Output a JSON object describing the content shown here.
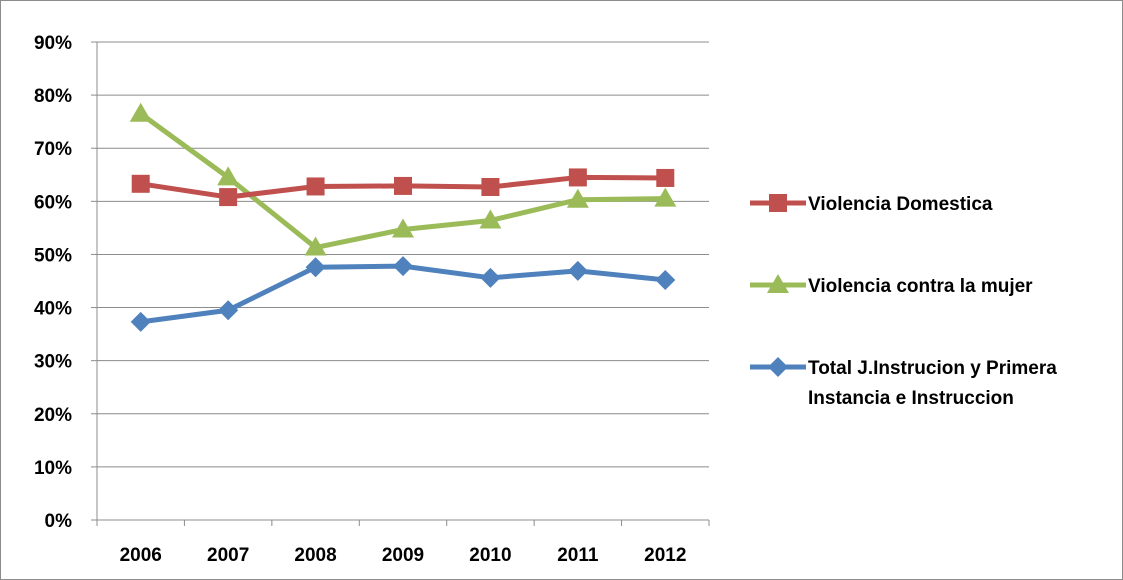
{
  "chart_data": {
    "type": "line",
    "categories": [
      "2006",
      "2007",
      "2008",
      "2009",
      "2010",
      "2011",
      "2012"
    ],
    "ylim": [
      0,
      0.9
    ],
    "yticks": [
      "0%",
      "10%",
      "20%",
      "30%",
      "40%",
      "50%",
      "60%",
      "70%",
      "80%",
      "90%"
    ],
    "grid": "horizontal",
    "legend_position": "right",
    "series": [
      {
        "name": "Violencia Domestica",
        "marker": "square",
        "color": "#c0504d",
        "values": [
          0.633,
          0.608,
          0.628,
          0.629,
          0.627,
          0.645,
          0.644
        ]
      },
      {
        "name": "Violencia contra la mujer",
        "marker": "triangle",
        "color": "#9bbb59",
        "values": [
          0.765,
          0.645,
          0.513,
          0.547,
          0.564,
          0.603,
          0.605
        ]
      },
      {
        "name": "Total J.Instrucion y Primera Instancia e Instruccion",
        "name_lines": [
          "Total J.Instrucion y Primera",
          "Instancia e Instruccion"
        ],
        "marker": "diamond",
        "color": "#4f81bd",
        "values": [
          0.373,
          0.395,
          0.476,
          0.478,
          0.456,
          0.469,
          0.452
        ]
      }
    ]
  }
}
